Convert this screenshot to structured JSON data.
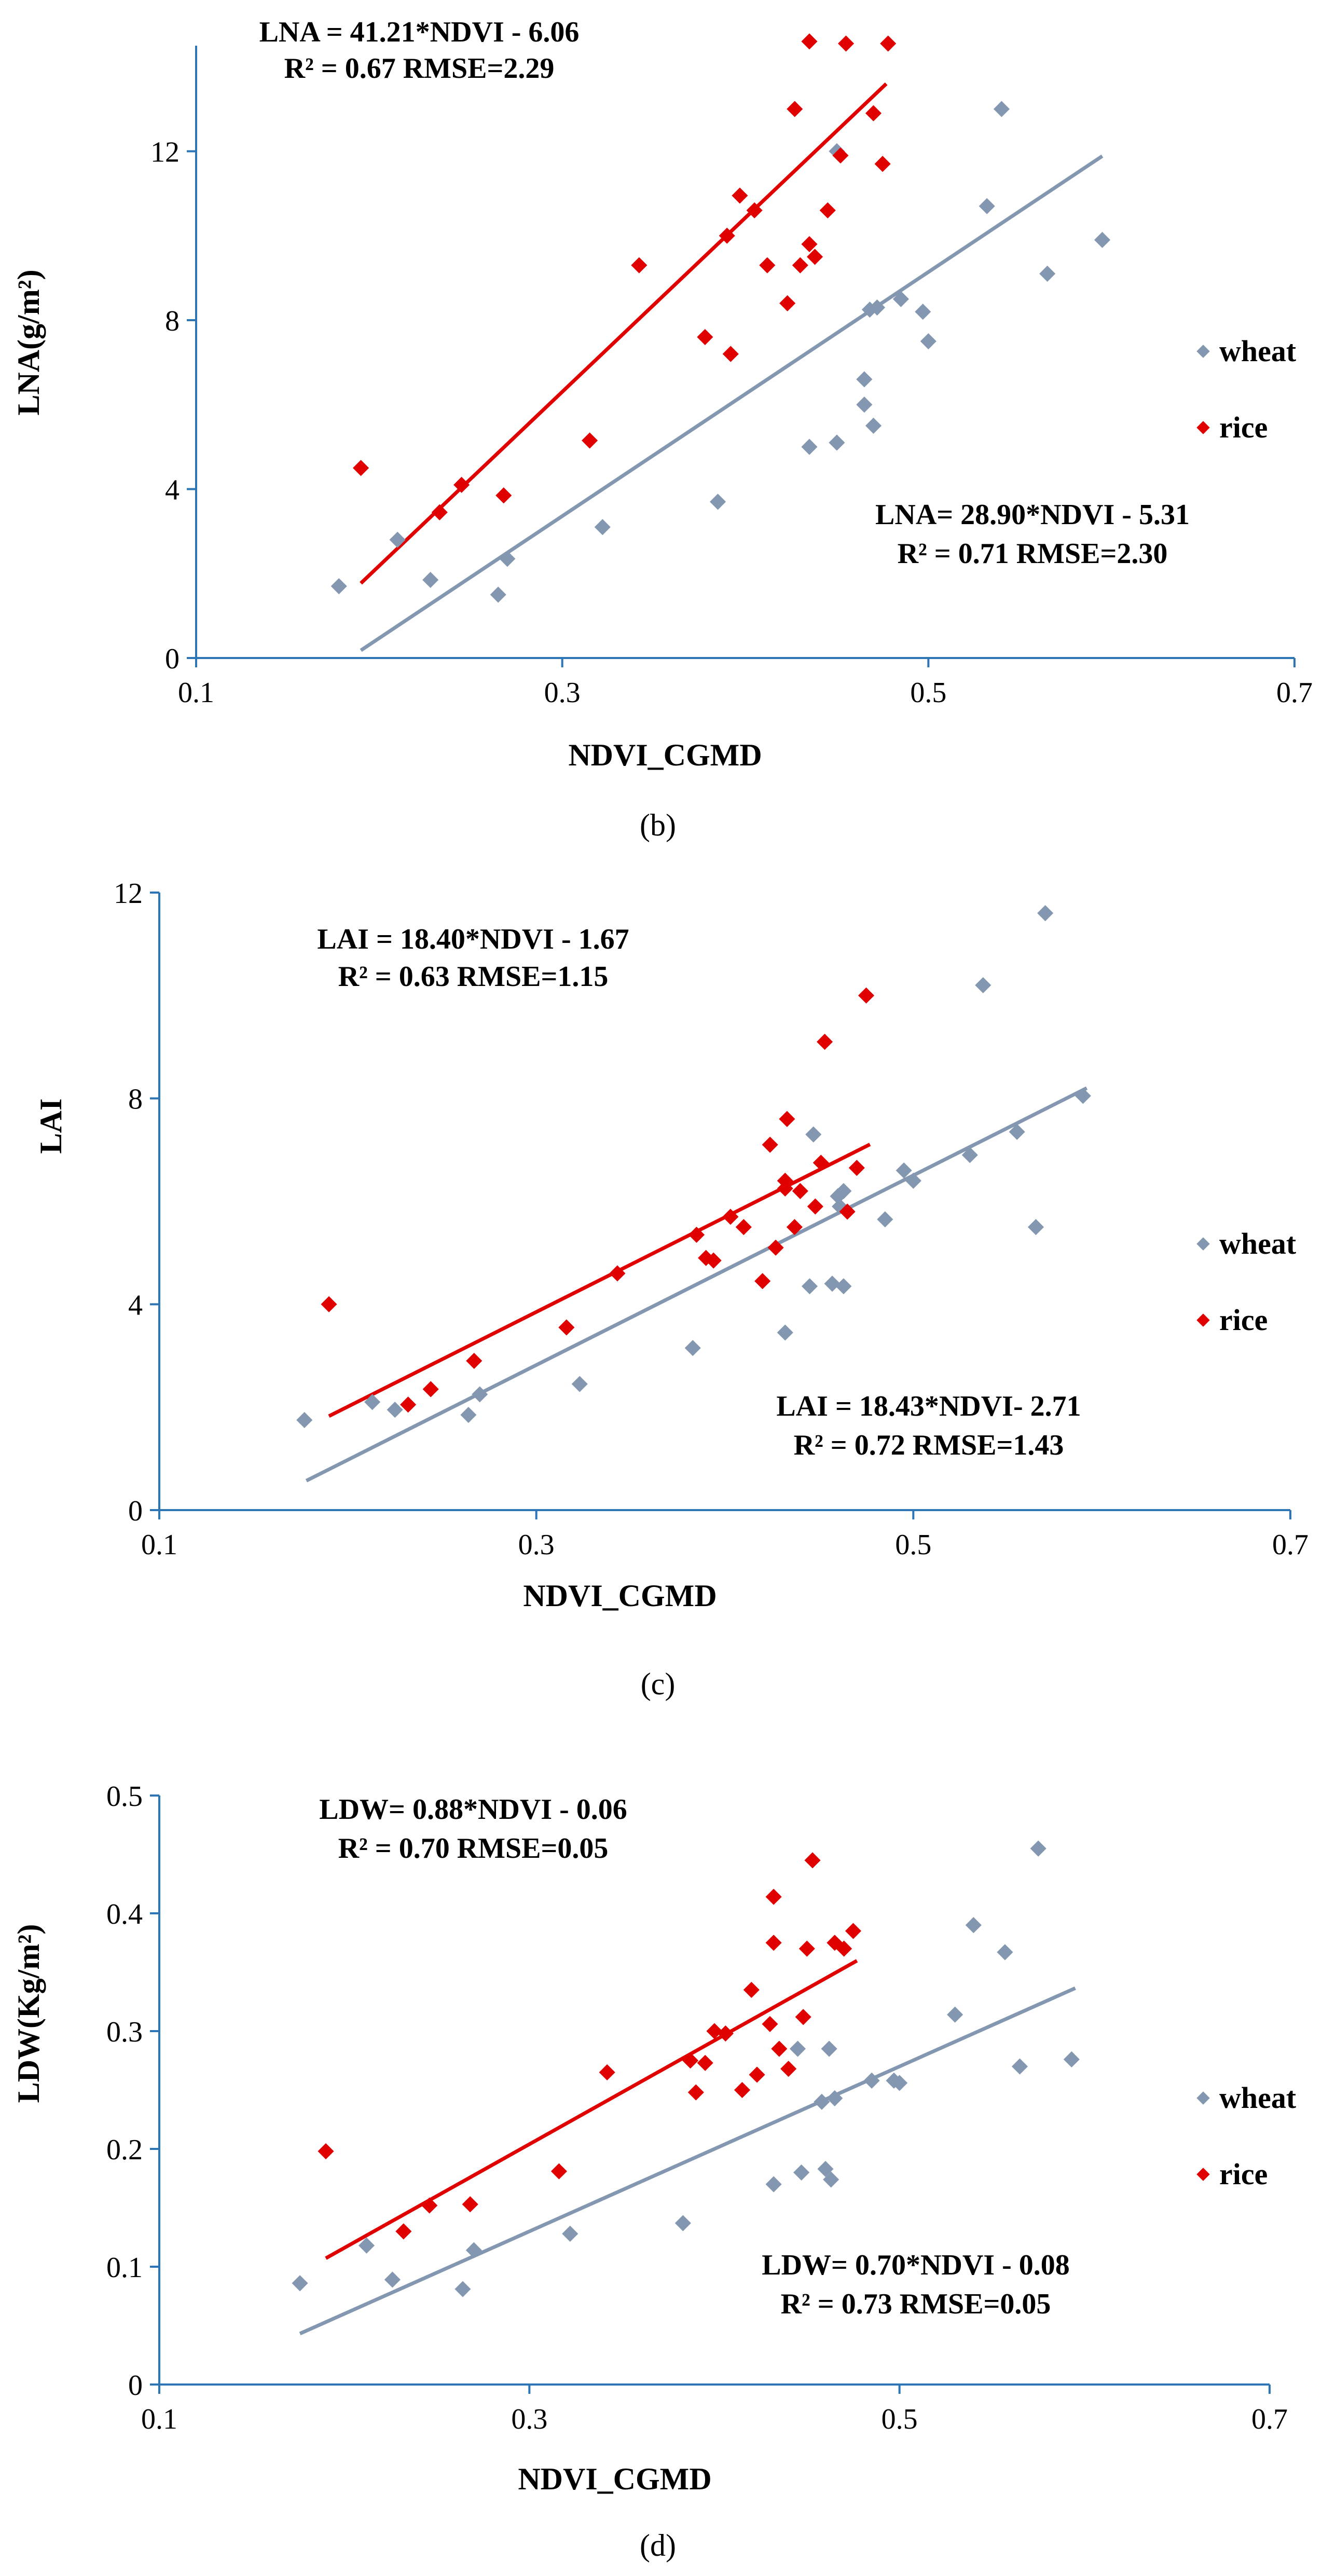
{
  "colors": {
    "wheat": "#8497b0",
    "rice": "#e00000",
    "axis": "#2e75b6"
  },
  "chart_data": [
    {
      "type": "scatter",
      "panel": "(b)",
      "xlabel": "NDVI_CGMD",
      "ylabel": "LNA(g/m²)",
      "xlim": [
        0.1,
        0.7
      ],
      "ylim": [
        0,
        14.5
      ],
      "xticks": [
        0.1,
        0.3,
        0.5,
        0.7
      ],
      "yticks": [
        0,
        4,
        8,
        12
      ],
      "xtick_labels": [
        "0.1",
        "0.3",
        "0.5",
        "0.7"
      ],
      "ytick_labels": [
        "0",
        "4",
        "8",
        "12"
      ],
      "legend": [
        "wheat",
        "rice"
      ],
      "rice_equation": "LNA = 41.21*NDVI - 6.06",
      "rice_stats": "R² = 0.67  RMSE=2.29",
      "wheat_equation": "LNA= 28.90*NDVI - 5.31",
      "wheat_stats": "R² = 0.71  RMSE=2.30",
      "series": [
        {
          "name": "wheat",
          "fit": {
            "slope": 28.9,
            "intercept": -5.31,
            "x_range": [
              0.19,
              0.595
            ]
          },
          "points": [
            [
              0.178,
              1.7
            ],
            [
              0.21,
              2.8
            ],
            [
              0.228,
              1.85
            ],
            [
              0.265,
              1.5
            ],
            [
              0.27,
              2.35
            ],
            [
              0.322,
              3.1
            ],
            [
              0.385,
              3.7
            ],
            [
              0.435,
              5.0
            ],
            [
              0.45,
              5.1
            ],
            [
              0.465,
              6.0
            ],
            [
              0.465,
              6.6
            ],
            [
              0.47,
              5.5
            ],
            [
              0.468,
              8.25
            ],
            [
              0.472,
              8.3
            ],
            [
              0.485,
              8.5
            ],
            [
              0.497,
              8.2
            ],
            [
              0.5,
              7.5
            ],
            [
              0.45,
              12.0
            ],
            [
              0.532,
              10.7
            ],
            [
              0.54,
              13.0
            ],
            [
              0.565,
              9.1
            ],
            [
              0.595,
              9.9
            ]
          ]
        },
        {
          "name": "rice",
          "fit": {
            "slope": 41.21,
            "intercept": -6.06,
            "x_range": [
              0.19,
              0.477
            ]
          },
          "points": [
            [
              0.19,
              4.5
            ],
            [
              0.233,
              3.45
            ],
            [
              0.245,
              4.1
            ],
            [
              0.268,
              3.85
            ],
            [
              0.315,
              5.15
            ],
            [
              0.342,
              9.3
            ],
            [
              0.378,
              7.6
            ],
            [
              0.39,
              10.0
            ],
            [
              0.392,
              7.2
            ],
            [
              0.397,
              10.95
            ],
            [
              0.405,
              10.6
            ],
            [
              0.412,
              9.3
            ],
            [
              0.423,
              8.4
            ],
            [
              0.427,
              13.0
            ],
            [
              0.43,
              9.3
            ],
            [
              0.435,
              9.8
            ],
            [
              0.438,
              9.5
            ],
            [
              0.445,
              10.6
            ],
            [
              0.452,
              11.9
            ],
            [
              0.47,
              12.9
            ],
            [
              0.475,
              11.7
            ],
            [
              0.435,
              14.6
            ],
            [
              0.455,
              14.55
            ],
            [
              0.478,
              14.55
            ]
          ]
        }
      ]
    },
    {
      "type": "scatter",
      "panel": "(c)",
      "xlabel": "NDVI_CGMD",
      "ylabel": "LAI",
      "xlim": [
        0.1,
        0.7
      ],
      "ylim": [
        0,
        12
      ],
      "xticks": [
        0.1,
        0.3,
        0.5,
        0.7
      ],
      "yticks": [
        0,
        4,
        8,
        12
      ],
      "xtick_labels": [
        "0.1",
        "0.3",
        "0.5",
        "0.7"
      ],
      "ytick_labels": [
        "0",
        "4",
        "8",
        "12"
      ],
      "legend": [
        "wheat",
        "rice"
      ],
      "rice_equation": "LAI = 18.40*NDVI - 1.67",
      "rice_stats": "R² = 0.63  RMSE=1.15",
      "wheat_equation": "LAI = 18.43*NDVI- 2.71",
      "wheat_stats": "R² = 0.72  RMSE=1.43",
      "series": [
        {
          "name": "wheat",
          "fit": {
            "slope": 18.43,
            "intercept": -2.71,
            "x_range": [
              0.178,
              0.592
            ]
          },
          "points": [
            [
              0.177,
              1.75
            ],
            [
              0.213,
              2.1
            ],
            [
              0.225,
              1.95
            ],
            [
              0.264,
              1.85
            ],
            [
              0.27,
              2.25
            ],
            [
              0.323,
              2.45
            ],
            [
              0.383,
              3.15
            ],
            [
              0.432,
              3.45
            ],
            [
              0.445,
              4.35
            ],
            [
              0.457,
              4.4
            ],
            [
              0.463,
              4.35
            ],
            [
              0.447,
              7.3
            ],
            [
              0.461,
              5.9
            ],
            [
              0.46,
              6.1
            ],
            [
              0.463,
              6.2
            ],
            [
              0.485,
              5.65
            ],
            [
              0.495,
              6.6
            ],
            [
              0.5,
              6.4
            ],
            [
              0.53,
              6.9
            ],
            [
              0.555,
              7.35
            ],
            [
              0.565,
              5.5
            ],
            [
              0.59,
              8.05
            ],
            [
              0.537,
              10.2
            ],
            [
              0.57,
              11.6
            ]
          ]
        },
        {
          "name": "rice",
          "fit": {
            "slope": 18.4,
            "intercept": -1.67,
            "x_range": [
              0.19,
              0.477
            ]
          },
          "points": [
            [
              0.19,
              4.0
            ],
            [
              0.232,
              2.05
            ],
            [
              0.244,
              2.35
            ],
            [
              0.267,
              2.9
            ],
            [
              0.316,
              3.55
            ],
            [
              0.343,
              4.6
            ],
            [
              0.385,
              5.35
            ],
            [
              0.39,
              4.9
            ],
            [
              0.394,
              4.85
            ],
            [
              0.403,
              5.7
            ],
            [
              0.41,
              5.5
            ],
            [
              0.42,
              4.45
            ],
            [
              0.424,
              7.1
            ],
            [
              0.427,
              5.1
            ],
            [
              0.432,
              6.4
            ],
            [
              0.433,
              7.6
            ],
            [
              0.432,
              6.25
            ],
            [
              0.437,
              5.5
            ],
            [
              0.44,
              6.2
            ],
            [
              0.448,
              5.9
            ],
            [
              0.451,
              6.75
            ],
            [
              0.453,
              9.1
            ],
            [
              0.465,
              5.8
            ],
            [
              0.47,
              6.65
            ],
            [
              0.475,
              10.0
            ]
          ]
        }
      ]
    },
    {
      "type": "scatter",
      "panel": "(d)",
      "xlabel": "NDVI_CGMD",
      "ylabel": "LDW(Kg/m²)",
      "xlim": [
        0.1,
        0.7
      ],
      "ylim": [
        0,
        0.5
      ],
      "xticks": [
        0.1,
        0.3,
        0.5,
        0.7
      ],
      "yticks": [
        0,
        0.1,
        0.2,
        0.3,
        0.4,
        0.5
      ],
      "xtick_labels": [
        "0.1",
        "0.3",
        "0.5",
        "0.7"
      ],
      "ytick_labels": [
        "0",
        "0.1",
        "0.2",
        "0.3",
        "0.4",
        "0.5"
      ],
      "legend": [
        "wheat",
        "rice"
      ],
      "rice_equation": "LDW= 0.88*NDVI - 0.06",
      "rice_stats": "R² = 0.70  RMSE=0.05",
      "wheat_equation": "LDW= 0.70*NDVI - 0.08",
      "wheat_stats": "R² = 0.73  RMSE=0.05",
      "series": [
        {
          "name": "wheat",
          "fit": {
            "slope": 0.7,
            "intercept": -0.08,
            "x_range": [
              0.176,
              0.595
            ]
          },
          "points": [
            [
              0.176,
              0.086
            ],
            [
              0.212,
              0.118
            ],
            [
              0.226,
              0.089
            ],
            [
              0.264,
              0.081
            ],
            [
              0.27,
              0.114
            ],
            [
              0.322,
              0.128
            ],
            [
              0.383,
              0.137
            ],
            [
              0.432,
              0.17
            ],
            [
              0.447,
              0.18
            ],
            [
              0.46,
              0.183
            ],
            [
              0.463,
              0.174
            ],
            [
              0.445,
              0.285
            ],
            [
              0.458,
              0.24
            ],
            [
              0.462,
              0.285
            ],
            [
              0.465,
              0.243
            ],
            [
              0.485,
              0.258
            ],
            [
              0.497,
              0.258
            ],
            [
              0.5,
              0.256
            ],
            [
              0.53,
              0.314
            ],
            [
              0.54,
              0.39
            ],
            [
              0.557,
              0.367
            ],
            [
              0.565,
              0.27
            ],
            [
              0.593,
              0.276
            ],
            [
              0.575,
              0.455
            ]
          ]
        },
        {
          "name": "rice",
          "fit": {
            "slope": 0.88,
            "intercept": -0.06,
            "x_range": [
              0.19,
              0.477
            ]
          },
          "points": [
            [
              0.19,
              0.198
            ],
            [
              0.232,
              0.13
            ],
            [
              0.246,
              0.152
            ],
            [
              0.268,
              0.153
            ],
            [
              0.316,
              0.181
            ],
            [
              0.342,
              0.265
            ],
            [
              0.387,
              0.275
            ],
            [
              0.39,
              0.248
            ],
            [
              0.395,
              0.273
            ],
            [
              0.4,
              0.3
            ],
            [
              0.406,
              0.298
            ],
            [
              0.415,
              0.25
            ],
            [
              0.42,
              0.335
            ],
            [
              0.423,
              0.263
            ],
            [
              0.43,
              0.306
            ],
            [
              0.432,
              0.375
            ],
            [
              0.432,
              0.414
            ],
            [
              0.435,
              0.285
            ],
            [
              0.44,
              0.268
            ],
            [
              0.448,
              0.312
            ],
            [
              0.45,
              0.37
            ],
            [
              0.453,
              0.445
            ],
            [
              0.465,
              0.375
            ],
            [
              0.47,
              0.37
            ],
            [
              0.475,
              0.385
            ]
          ]
        }
      ]
    }
  ]
}
